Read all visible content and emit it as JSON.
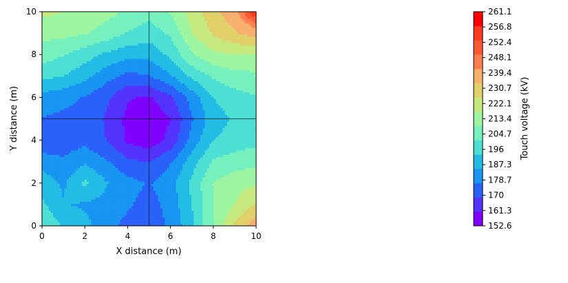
{
  "chart_data": {
    "type": "heatmap",
    "subtype": "filled-contour",
    "title": "",
    "xlabel": "X distance (m)",
    "ylabel": "Y distance (m)",
    "xlim": [
      0,
      10
    ],
    "ylim": [
      0,
      10
    ],
    "xticks": [
      "0",
      "2",
      "4",
      "6",
      "8",
      "10"
    ],
    "yticks": [
      "0",
      "2",
      "4",
      "6",
      "8",
      "10"
    ],
    "colorbar": {
      "label": "Touch voltage (kV)",
      "levels": [
        "152.6",
        "161.3",
        "170",
        "178.7",
        "187.3",
        "196",
        "204.7",
        "213.4",
        "222.1",
        "230.7",
        "239.4",
        "248.1",
        "252.4",
        "256.8",
        "261.1"
      ],
      "colors": [
        "#7f00ff",
        "#5433fe",
        "#2a62f9",
        "#1995f2",
        "#22bce5",
        "#4ddfd4",
        "#76f1be",
        "#9df5a1",
        "#c6e97f",
        "#e1d06a",
        "#f8b06e",
        "#ff7f50",
        "#ff5934",
        "#ff3a1f",
        "#ff0000"
      ]
    },
    "grid_x": [
      0,
      1,
      2,
      3,
      4,
      5,
      6,
      7,
      8,
      9,
      10
    ],
    "grid_y": [
      0,
      1,
      2,
      3,
      4,
      5,
      6,
      7,
      8,
      9,
      10
    ],
    "z": [
      [
        205,
        195,
        190,
        182,
        176,
        174,
        180,
        194,
        214,
        233,
        245
      ],
      [
        198,
        188,
        186,
        184,
        180,
        175,
        182,
        196,
        213,
        222,
        232
      ],
      [
        192,
        186,
        198,
        188,
        182,
        178,
        184,
        198,
        214,
        219,
        221
      ],
      [
        184,
        180,
        186,
        180,
        172,
        170,
        178,
        192,
        206,
        209,
        211
      ],
      [
        171,
        174,
        176,
        170,
        160,
        156,
        164,
        182,
        196,
        200,
        202
      ],
      [
        178,
        177,
        176,
        169,
        159,
        155,
        161,
        178,
        192,
        197,
        200
      ],
      [
        184,
        181,
        178,
        172,
        162,
        160,
        168,
        182,
        196,
        201,
        204
      ],
      [
        198,
        196,
        190,
        182,
        176,
        178,
        186,
        198,
        206,
        210,
        211
      ],
      [
        209,
        205,
        200,
        194,
        190,
        190,
        198,
        212,
        220,
        222,
        222
      ],
      [
        216,
        216,
        214,
        210,
        204,
        200,
        206,
        222,
        232,
        238,
        244
      ],
      [
        224,
        222,
        219,
        216,
        212,
        208,
        214,
        226,
        236,
        246,
        262
      ]
    ],
    "crosshair": {
      "x": 5,
      "y": 5
    }
  }
}
